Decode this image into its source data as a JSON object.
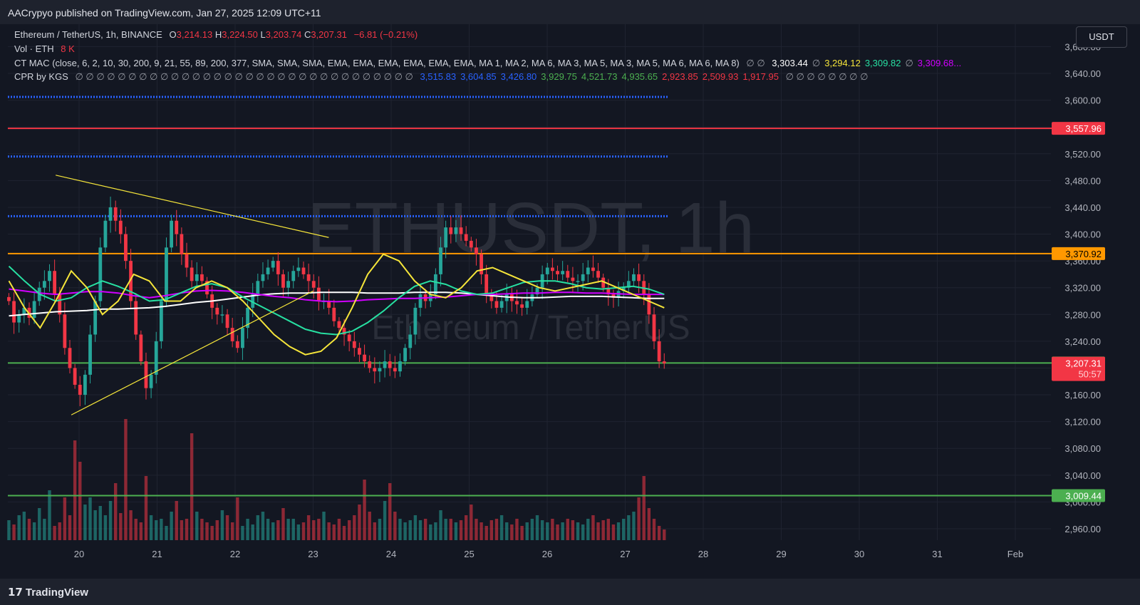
{
  "header": {
    "published": "AACrypyo published on TradingView.com, Jan 27, 2025 12:09 UTC+11"
  },
  "legend": {
    "symbol": "Ethereum / TetherUS, 1h, BINANCE",
    "o_label": "O",
    "o": "3,214.13",
    "h_label": "H",
    "h": "3,224.50",
    "l_label": "L",
    "l": "3,203.74",
    "c_label": "C",
    "c": "3,207.31",
    "change": "−6.81 (−0.21%)",
    "vol_label": "Vol · ETH",
    "vol": "8 K",
    "ctmac_label": "CT MAC (close, 6, 2, 10, 30, 200, 9, 21, 55, 89, 200, 377, SMA, SMA, SMA, EMA, EMA, EMA, EMA, EMA, EMA, MA 1, MA 2, MA 6, MA 3, MA 5, MA 3, MA 5, MA 6, MA 6, MA 8)",
    "ctmac_empty": "∅ ∅",
    "ctmac_values": [
      {
        "text": "3,303.44",
        "color": "#ffffff"
      },
      {
        "text": "∅",
        "color": "#9598a1"
      },
      {
        "text": "3,294.12",
        "color": "#f5e53a"
      },
      {
        "text": "3,309.82",
        "color": "#27e0a2"
      },
      {
        "text": "∅",
        "color": "#9598a1"
      },
      {
        "text": "3,309.68...",
        "color": "#d000ff"
      }
    ],
    "cpr_label": "CPR by KGS",
    "cpr_empty": "∅ ∅ ∅ ∅ ∅ ∅ ∅ ∅ ∅ ∅ ∅ ∅ ∅ ∅ ∅ ∅ ∅ ∅ ∅ ∅ ∅ ∅ ∅ ∅ ∅ ∅ ∅ ∅ ∅ ∅ ∅ ∅",
    "cpr_values": [
      {
        "text": "3,515.83",
        "color": "#2962ff"
      },
      {
        "text": "3,604.85",
        "color": "#2962ff"
      },
      {
        "text": "3,426.80",
        "color": "#2962ff"
      },
      {
        "text": "3,929.75",
        "color": "#4caf50"
      },
      {
        "text": "4,521.73",
        "color": "#4caf50"
      },
      {
        "text": "4,935.65",
        "color": "#4caf50"
      },
      {
        "text": "2,923.85",
        "color": "#f23645"
      },
      {
        "text": "2,509.93",
        "color": "#f23645"
      },
      {
        "text": "1,917.95",
        "color": "#f23645"
      }
    ],
    "cpr_tail": "∅ ∅ ∅ ∅ ∅ ∅ ∅ ∅"
  },
  "currency_button": "USDT",
  "watermark": {
    "big": "ETHUSDT, 1h",
    "small": "Ethereum / TetherUS"
  },
  "brand": "TradingView",
  "colors": {
    "up": "#26a69a",
    "down": "#f23645",
    "background": "#131722"
  },
  "chart_data": {
    "type": "candlestick",
    "ylim": [
      2940,
      3680
    ],
    "y_ticks": [
      "2,960.00",
      "3,000.00",
      "3,040.00",
      "3,080.00",
      "3,120.00",
      "3,160.00",
      "3,200.00",
      "3,240.00",
      "3,280.00",
      "3,320.00",
      "3,360.00",
      "3,400.00",
      "3,440.00",
      "3,480.00",
      "3,520.00",
      "3,560.00",
      "3,600.00",
      "3,640.00",
      "3,680.00"
    ],
    "x_ticks": [
      "20",
      "21",
      "22",
      "23",
      "24",
      "25",
      "26",
      "27",
      "28",
      "29",
      "30",
      "31",
      "Feb"
    ],
    "price_levels": [
      {
        "value": 3557.96,
        "label": "3,557.96",
        "color": "#f23645",
        "style": "solid"
      },
      {
        "value": 3370.92,
        "label": "3,370.92",
        "color": "#ff9800",
        "style": "solid"
      },
      {
        "value": 3207.57,
        "label": "3,207.57",
        "color": "#4caf50",
        "style": "solid"
      },
      {
        "value": 3009.44,
        "label": "3,009.44",
        "color": "#4caf50",
        "style": "solid"
      },
      {
        "value": 3604.85,
        "label": "",
        "color": "#2962ff",
        "style": "dotted"
      },
      {
        "value": 3515.83,
        "label": "",
        "color": "#2962ff",
        "style": "dotted"
      },
      {
        "value": 3426.8,
        "label": "",
        "color": "#2962ff",
        "style": "dotted"
      }
    ],
    "last_price": {
      "value": 3207.31,
      "label": "3,207.31",
      "countdown": "50:57",
      "color": "#f23645"
    },
    "closes": [
      3300,
      3268,
      3280,
      3290,
      3275,
      3300,
      3320,
      3330,
      3345,
      3310,
      3280,
      3230,
      3200,
      3175,
      3160,
      3190,
      3250,
      3300,
      3380,
      3420,
      3440,
      3420,
      3400,
      3360,
      3300,
      3250,
      3210,
      3170,
      3190,
      3240,
      3300,
      3380,
      3420,
      3400,
      3370,
      3350,
      3330,
      3340,
      3330,
      3310,
      3290,
      3280,
      3280,
      3260,
      3240,
      3230,
      3260,
      3290,
      3310,
      3330,
      3340,
      3350,
      3360,
      3340,
      3320,
      3330,
      3345,
      3350,
      3340,
      3330,
      3320,
      3300,
      3300,
      3290,
      3270,
      3260,
      3250,
      3240,
      3230,
      3220,
      3210,
      3200,
      3195,
      3200,
      3210,
      3200,
      3195,
      3210,
      3230,
      3250,
      3290,
      3310,
      3300,
      3310,
      3340,
      3380,
      3410,
      3400,
      3410,
      3400,
      3390,
      3380,
      3370,
      3340,
      3310,
      3300,
      3290,
      3300,
      3310,
      3300,
      3295,
      3290,
      3300,
      3310,
      3320,
      3340,
      3350,
      3345,
      3340,
      3345,
      3335,
      3330,
      3330,
      3340,
      3350,
      3345,
      3335,
      3320,
      3310,
      3305,
      3315,
      3320,
      3330,
      3340,
      3330,
      3310,
      3280,
      3240,
      3210,
      3207
    ],
    "ma_series": [
      {
        "name": "",
        "color": "#ffffff",
        "values": [
          3278,
          3280,
          3282,
          3284,
          3285,
          3286,
          3288,
          3288,
          3289,
          3290,
          3292,
          3295,
          3298,
          3300,
          3303,
          3306,
          3309,
          3311,
          3312,
          3312,
          3313,
          3313,
          3313,
          3312,
          3312,
          3312,
          3313,
          3313,
          3313,
          3312,
          3310,
          3308,
          3306,
          3305,
          3305,
          3306,
          3307,
          3307,
          3307,
          3306,
          3305,
          3304,
          3304
        ]
      },
      {
        "name": "",
        "color": "#d000ff",
        "values": [
          3318,
          3315,
          3312,
          3310,
          3312,
          3314,
          3314,
          3312,
          3308,
          3305,
          3308,
          3312,
          3315,
          3316,
          3315,
          3313,
          3310,
          3307,
          3305,
          3302,
          3300,
          3299,
          3300,
          3302,
          3303,
          3304,
          3304,
          3305,
          3306,
          3308,
          3310,
          3310,
          3311,
          3312,
          3312,
          3313,
          3313,
          3312,
          3312,
          3311,
          3310,
          3310,
          3310
        ]
      },
      {
        "name": "",
        "color": "#27e0a2",
        "values": [
          3352,
          3330,
          3310,
          3300,
          3305,
          3320,
          3330,
          3322,
          3312,
          3300,
          3302,
          3312,
          3322,
          3326,
          3320,
          3306,
          3294,
          3282,
          3270,
          3258,
          3252,
          3250,
          3255,
          3268,
          3285,
          3305,
          3322,
          3330,
          3325,
          3315,
          3310,
          3312,
          3320,
          3328,
          3330,
          3330,
          3326,
          3320,
          3318,
          3320,
          3322,
          3318,
          3310
        ]
      },
      {
        "name": "",
        "color": "#f5e53a",
        "values": [
          3330,
          3290,
          3260,
          3300,
          3345,
          3320,
          3280,
          3300,
          3340,
          3330,
          3300,
          3300,
          3320,
          3330,
          3320,
          3300,
          3275,
          3250,
          3232,
          3220,
          3225,
          3245,
          3290,
          3340,
          3370,
          3360,
          3330,
          3310,
          3305,
          3320,
          3345,
          3350,
          3340,
          3330,
          3320,
          3315,
          3320,
          3325,
          3330,
          3320,
          3310,
          3300,
          3290
        ]
      }
    ],
    "volume": [
      28,
      22,
      35,
      40,
      30,
      25,
      45,
      30,
      70,
      20,
      25,
      60,
      35,
      140,
      110,
      50,
      60,
      42,
      48,
      35,
      55,
      80,
      38,
      170,
      42,
      30,
      25,
      90,
      35,
      28,
      30,
      20,
      40,
      55,
      28,
      30,
      150,
      40,
      30,
      25,
      20,
      28,
      42,
      35,
      25,
      60,
      20,
      30,
      22,
      35,
      40,
      30,
      25,
      28,
      45,
      30,
      30,
      22,
      25,
      35,
      28,
      30,
      40,
      25,
      22,
      30,
      20,
      28,
      35,
      50,
      85,
      40,
      25,
      30,
      55,
      80,
      40,
      30,
      25,
      28,
      35,
      28,
      30,
      22,
      25,
      42,
      30,
      30,
      25,
      28,
      35,
      50,
      30,
      25,
      20,
      28,
      30,
      35,
      25,
      22,
      30,
      20,
      25,
      30,
      35,
      28,
      25,
      30,
      22,
      25,
      30,
      28,
      25,
      22,
      30,
      35,
      25,
      28,
      30,
      22,
      25,
      30,
      35,
      40,
      60,
      90,
      45,
      30,
      20,
      15
    ],
    "trendlines": [
      {
        "from": [
          -0.3,
          3488
        ],
        "to": [
          3.2,
          3395
        ],
        "color": "#f5e53a"
      },
      {
        "from": [
          -0.1,
          3130
        ],
        "to": [
          3.0,
          3315
        ],
        "color": "#f5e53a"
      }
    ]
  }
}
